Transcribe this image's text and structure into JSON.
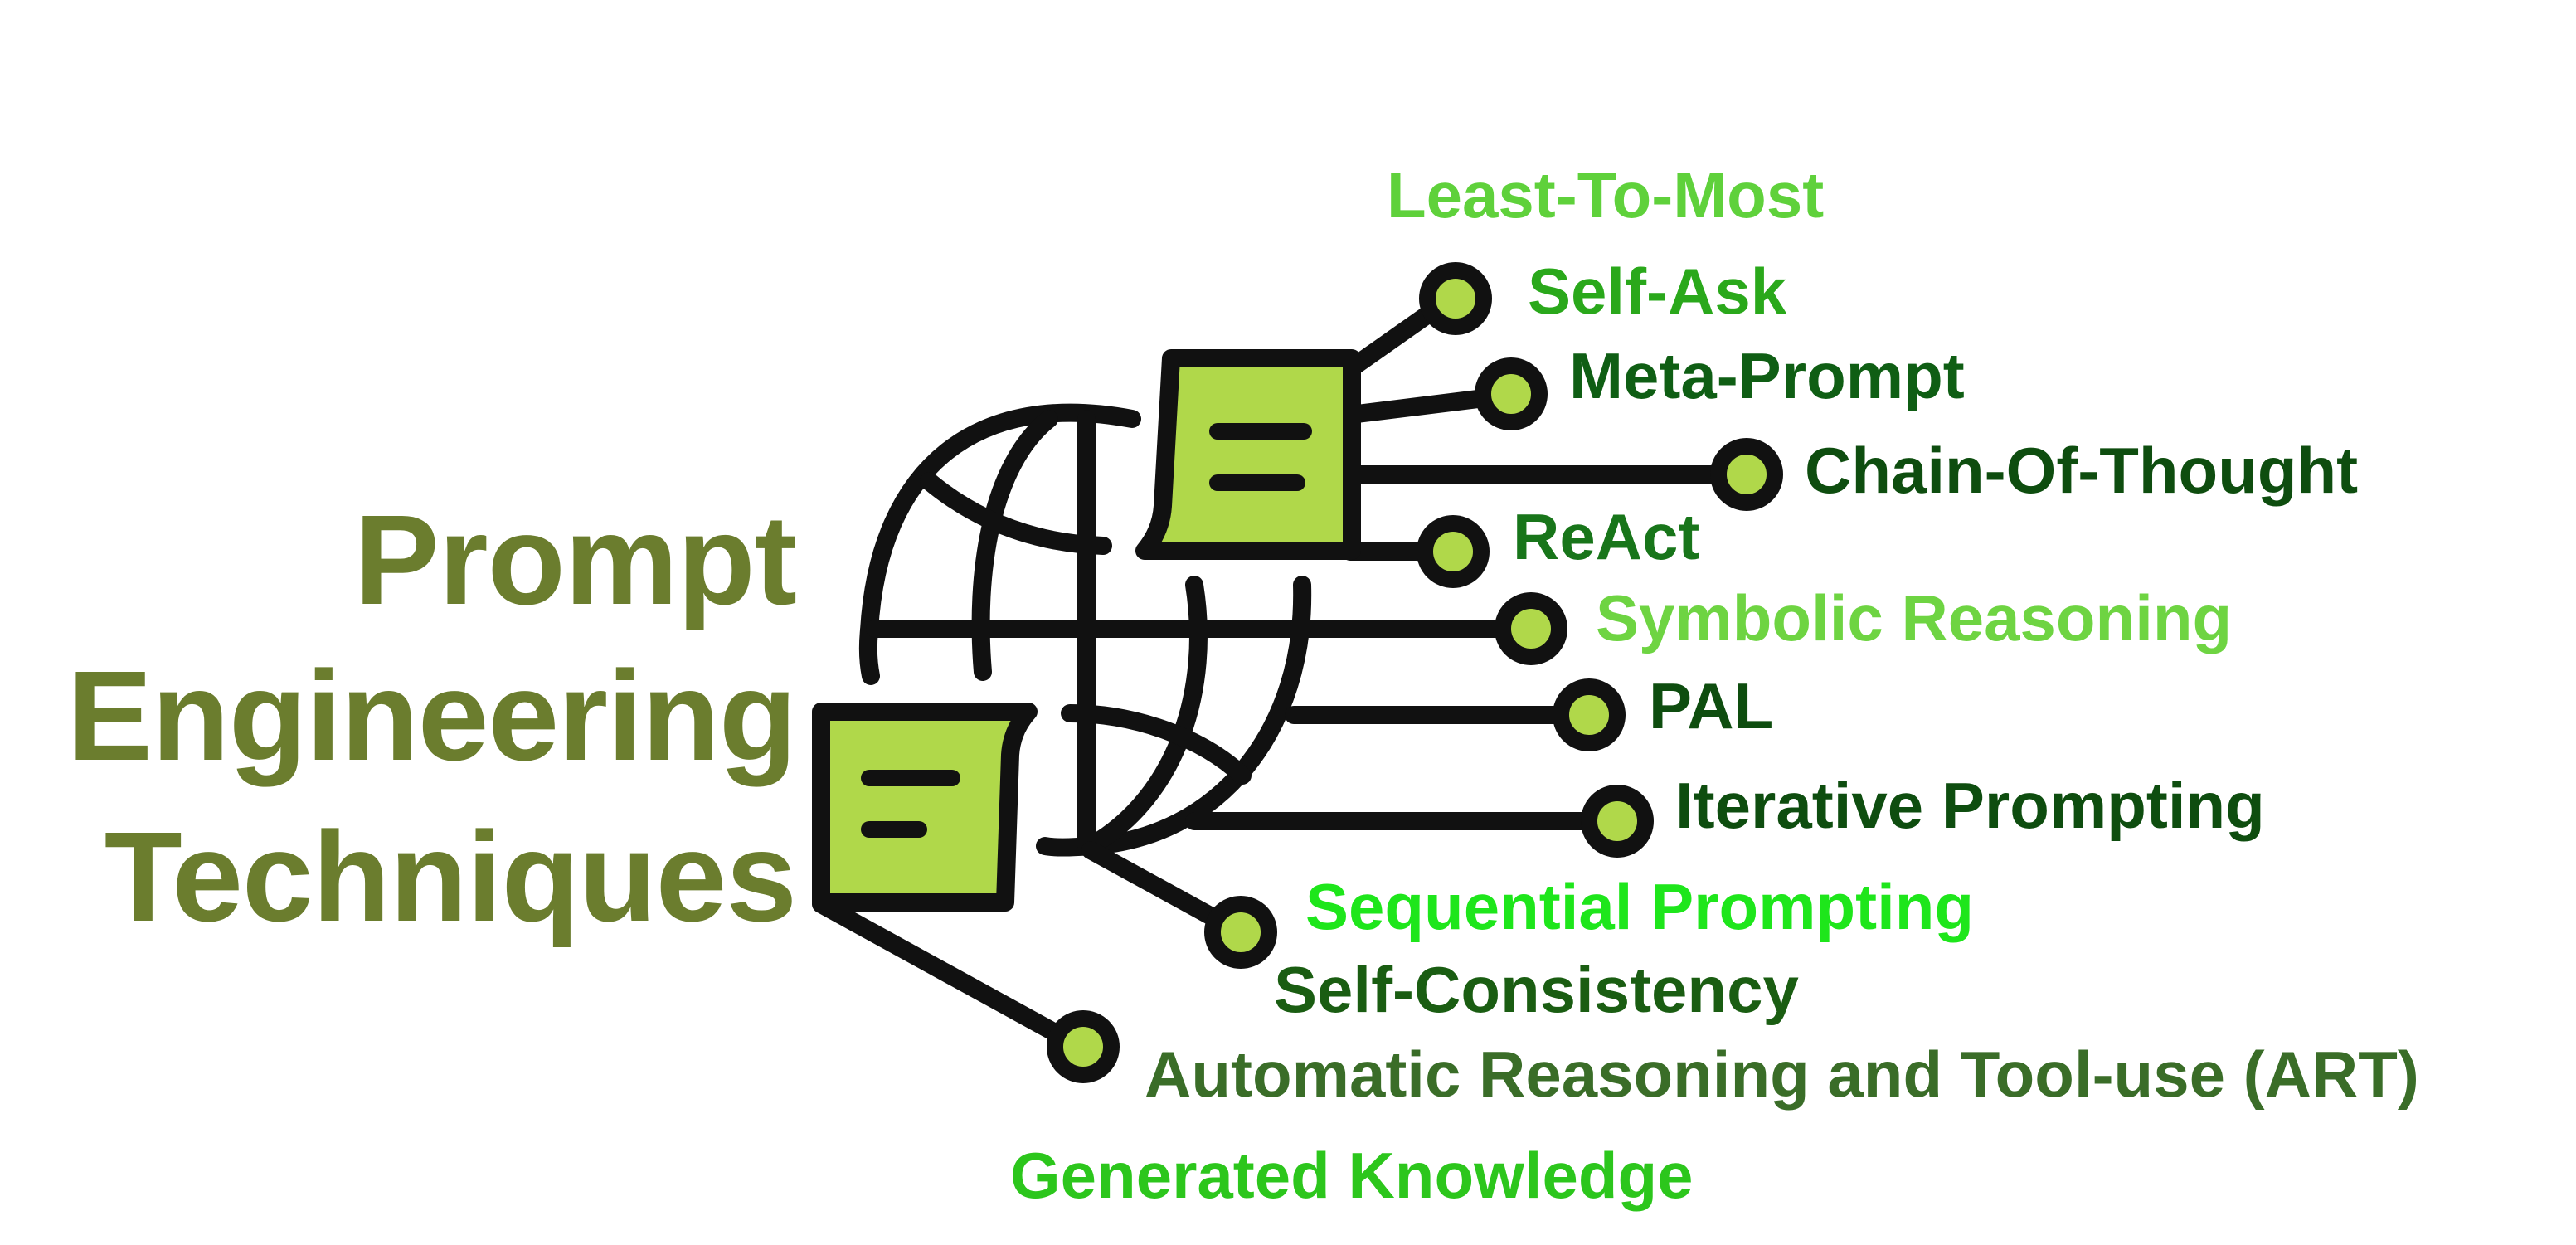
{
  "title": {
    "lines": [
      "Prompt",
      "Engineering",
      "Techniques"
    ],
    "color": "#6b7d2e"
  },
  "icon": {
    "name": "globe-network-icon",
    "fill": "#b0d84a",
    "stroke": "#111111"
  },
  "techniques": [
    {
      "label": "Least-To-Most",
      "color": "#5fd13b"
    },
    {
      "label": "Self-Ask",
      "color": "#2aa81b"
    },
    {
      "label": "Meta-Prompt",
      "color": "#0f5e14"
    },
    {
      "label": "Chain-Of-Thought",
      "color": "#0e4d0f"
    },
    {
      "label": "ReAct",
      "color": "#18751a"
    },
    {
      "label": "Symbolic Reasoning",
      "color": "#6ed442"
    },
    {
      "label": "PAL",
      "color": "#0e4d0f"
    },
    {
      "label": "Iterative Prompting",
      "color": "#0e4d0f"
    },
    {
      "label": "Sequential Prompting",
      "color": "#1ee61b"
    },
    {
      "label": "Self-Consistency",
      "color": "#1a5d12"
    },
    {
      "label": "Automatic Reasoning and Tool-use (ART)",
      "color": "#3a6d28"
    },
    {
      "label": "Generated Knowledge",
      "color": "#2cc61c"
    }
  ]
}
